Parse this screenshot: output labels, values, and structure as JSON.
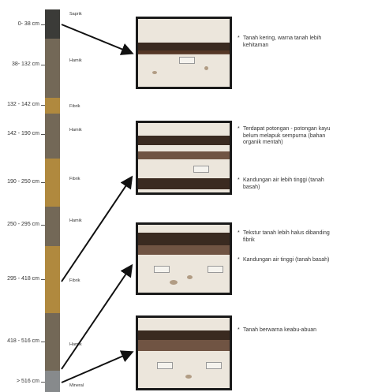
{
  "depths": [
    {
      "label": "0- 38 cm",
      "type": "Saprik",
      "color": "#3b3b38"
    },
    {
      "label": "38- 132 cm",
      "type": "Hamik",
      "color": "#736857"
    },
    {
      "label": "132 - 142 cm",
      "type": "Fibrik",
      "color": "#b0893e"
    },
    {
      "label": "142 - 190 cm",
      "type": "Hamik",
      "color": "#736857"
    },
    {
      "label": "190 - 250 cm",
      "type": "Fibrik",
      "color": "#b0893e"
    },
    {
      "label": "250 - 295 cm",
      "type": "Hamik",
      "color": "#736857"
    },
    {
      "label": "295 - 418 cm",
      "type": "Fibrik",
      "color": "#b0893e"
    },
    {
      "label": "418 - 516 cm",
      "type": "Hamik",
      "color": "#736857"
    },
    {
      "label": "> 516 cm",
      "type": "Mineral",
      "color": "#878a8c"
    }
  ],
  "notes": [
    {
      "items": [
        "Tanah kering, warna tanah lebih kehitaman"
      ]
    },
    {
      "items": [
        "Terdapat potongan - potongan kayu belum melapuk sempurna (bahan organik mentah)",
        "Kandungan air lebih tinggi (tanah basah)"
      ]
    },
    {
      "items": [
        "Tekstur tanah lebih halus dibanding fibrik",
        "Kandungan air tinggi (tanah basah)"
      ]
    },
    {
      "items": [
        "Tanah berwarna keabu-abuan"
      ]
    }
  ],
  "bullet_symbol": "*"
}
